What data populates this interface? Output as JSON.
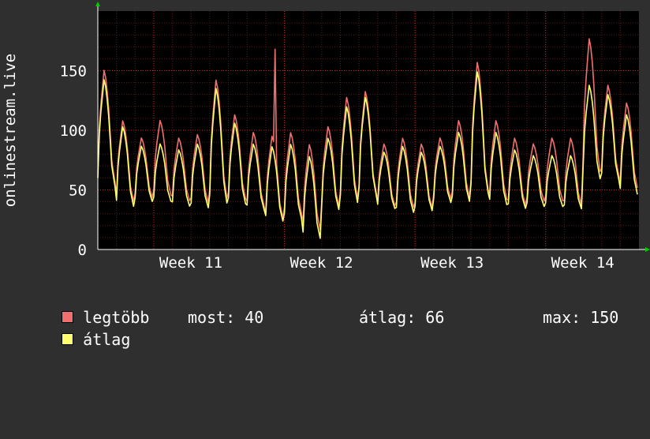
{
  "chart_data": {
    "type": "line",
    "ylabel": "onlinestream.live",
    "ylim": [
      0,
      200
    ],
    "yticks": [
      0,
      50,
      100,
      150
    ],
    "xticks": [
      "Week 11",
      "Week 12",
      "Week 13",
      "Week 14"
    ],
    "grid": true,
    "background": "#000000",
    "page_background": "#2f2f2f",
    "grid_color": "#cc2222",
    "axis_color": "#ffffff",
    "arrow_color": "#00cc00",
    "series": [
      {
        "name": "legtöbb",
        "color": "#f07070",
        "period_days": 1,
        "days": [
          {
            "peak": 153,
            "trough": 48,
            "bump": 0
          },
          {
            "peak": 110,
            "trough": 34,
            "bump": 0
          },
          {
            "peak": 95,
            "trough": 39,
            "bump": 0
          },
          {
            "peak": 110,
            "trough": 40,
            "bump": 0
          },
          {
            "peak": 95,
            "trough": 36,
            "bump": 0
          },
          {
            "peak": 98,
            "trough": 34,
            "bump": 0
          },
          {
            "peak": 145,
            "trough": 34,
            "bump": 0
          },
          {
            "peak": 115,
            "trough": 36,
            "bump": 0
          },
          {
            "peak": 100,
            "trough": 30,
            "bump": 0
          },
          {
            "peak": 97,
            "trough": 20,
            "bump": 168
          },
          {
            "peak": 100,
            "trough": 24,
            "bump": 0
          },
          {
            "peak": 90,
            "trough": 10,
            "bump": 0
          },
          {
            "peak": 105,
            "trough": 30,
            "bump": 0
          },
          {
            "peak": 130,
            "trough": 35,
            "bump": 0
          },
          {
            "peak": 135,
            "trough": 40,
            "bump": 0
          },
          {
            "peak": 90,
            "trough": 32,
            "bump": 0
          },
          {
            "peak": 95,
            "trough": 30,
            "bump": 0
          },
          {
            "peak": 90,
            "trough": 30,
            "bump": 0
          },
          {
            "peak": 95,
            "trough": 38,
            "bump": 0
          },
          {
            "peak": 110,
            "trough": 38,
            "bump": 0
          },
          {
            "peak": 160,
            "trough": 40,
            "bump": 0
          },
          {
            "peak": 110,
            "trough": 36,
            "bump": 0
          },
          {
            "peak": 95,
            "trough": 32,
            "bump": 0
          },
          {
            "peak": 90,
            "trough": 36,
            "bump": 0
          },
          {
            "peak": 95,
            "trough": 36,
            "bump": 0
          },
          {
            "peak": 95,
            "trough": 32,
            "bump": 0
          },
          {
            "peak": 180,
            "trough": 55,
            "bump": 0
          },
          {
            "peak": 140,
            "trough": 55,
            "bump": 0
          },
          {
            "peak": 125,
            "trough": 45,
            "bump": 0
          }
        ]
      },
      {
        "name": "átlag",
        "color": "#ffff70",
        "period_days": 1,
        "days": [
          {
            "peak": 145,
            "trough": 45,
            "bump": 0
          },
          {
            "peak": 105,
            "trough": 30,
            "bump": 0
          },
          {
            "peak": 88,
            "trough": 36,
            "bump": 0
          },
          {
            "peak": 90,
            "trough": 36,
            "bump": 0
          },
          {
            "peak": 85,
            "trough": 32,
            "bump": 0
          },
          {
            "peak": 90,
            "trough": 30,
            "bump": 0
          },
          {
            "peak": 138,
            "trough": 30,
            "bump": 0
          },
          {
            "peak": 108,
            "trough": 32,
            "bump": 0
          },
          {
            "peak": 90,
            "trough": 28,
            "bump": 0
          },
          {
            "peak": 88,
            "trough": 18,
            "bump": 0
          },
          {
            "peak": 90,
            "trough": 20,
            "bump": 0
          },
          {
            "peak": 80,
            "trough": 3,
            "bump": 0
          },
          {
            "peak": 95,
            "trough": 28,
            "bump": 0
          },
          {
            "peak": 122,
            "trough": 32,
            "bump": 0
          },
          {
            "peak": 130,
            "trough": 38,
            "bump": 0
          },
          {
            "peak": 83,
            "trough": 30,
            "bump": 0
          },
          {
            "peak": 88,
            "trough": 26,
            "bump": 0
          },
          {
            "peak": 83,
            "trough": 28,
            "bump": 0
          },
          {
            "peak": 88,
            "trough": 35,
            "bump": 0
          },
          {
            "peak": 100,
            "trough": 35,
            "bump": 0
          },
          {
            "peak": 152,
            "trough": 38,
            "bump": 0
          },
          {
            "peak": 100,
            "trough": 32,
            "bump": 0
          },
          {
            "peak": 85,
            "trough": 30,
            "bump": 0
          },
          {
            "peak": 80,
            "trough": 32,
            "bump": 0
          },
          {
            "peak": 80,
            "trough": 32,
            "bump": 0
          },
          {
            "peak": 80,
            "trough": 30,
            "bump": 0
          },
          {
            "peak": 140,
            "trough": 52,
            "bump": 0
          },
          {
            "peak": 132,
            "trough": 52,
            "bump": 0
          },
          {
            "peak": 115,
            "trough": 40,
            "bump": 0
          }
        ]
      }
    ]
  },
  "legend": {
    "items": [
      {
        "label": "legtöbb",
        "color": "#f07070"
      },
      {
        "label": "átlag",
        "color": "#ffff70"
      }
    ],
    "stats": {
      "most": "most: 40",
      "atlag": "átlag: 66",
      "max": "max: 150"
    }
  }
}
